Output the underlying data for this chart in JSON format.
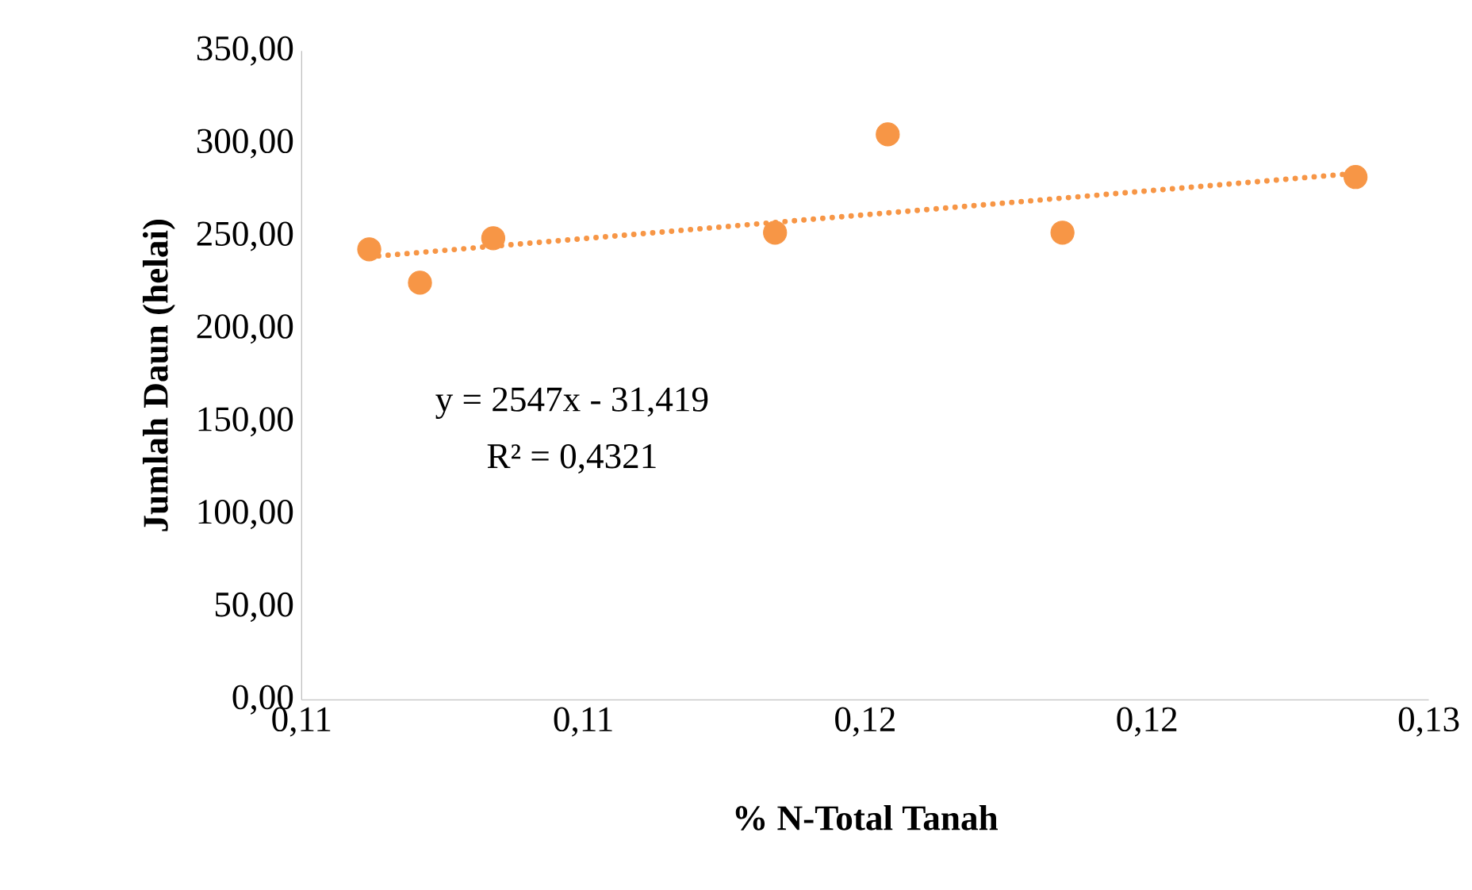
{
  "chart_data": {
    "type": "scatter",
    "xlabel": "% N-Total Tanah",
    "ylabel": "Jumlah Daun (helai)",
    "series": [
      {
        "color": "#f79646",
        "marker": "circle",
        "x": [
          0.1062,
          0.1071,
          0.1084,
          0.1134,
          0.1154,
          0.1185,
          0.1237
        ],
        "values": [
          243,
          225,
          249,
          252,
          305,
          252,
          282
        ]
      },
      {
        "type": "line",
        "color": "#f79646",
        "line_style": "dotted",
        "marker": "none",
        "x": [
          0.1062,
          0.1237
        ],
        "values": [
          239,
          284
        ]
      }
    ],
    "annotations": [
      "y = 2547x - 31,419",
      "R² = 0,4321"
    ],
    "xlim": [
      0.105,
      0.125
    ],
    "xticks": [
      {
        "value": 0.105,
        "label": "0,11"
      },
      {
        "value": 0.11,
        "label": "0,11"
      },
      {
        "value": 0.115,
        "label": "0,12"
      },
      {
        "value": 0.12,
        "label": "0,12"
      },
      {
        "value": 0.125,
        "label": "0,13"
      }
    ],
    "ylim": [
      0,
      350
    ],
    "yticks": [
      {
        "value": 0,
        "label": "0,00"
      },
      {
        "value": 50,
        "label": "50,00"
      },
      {
        "value": 100,
        "label": "100,00"
      },
      {
        "value": 150,
        "label": "150,00"
      },
      {
        "value": 200,
        "label": "200,00"
      },
      {
        "value": 250,
        "label": "250,00"
      },
      {
        "value": 300,
        "label": "300,00"
      },
      {
        "value": 350,
        "label": "350,00"
      }
    ],
    "grid": false
  }
}
